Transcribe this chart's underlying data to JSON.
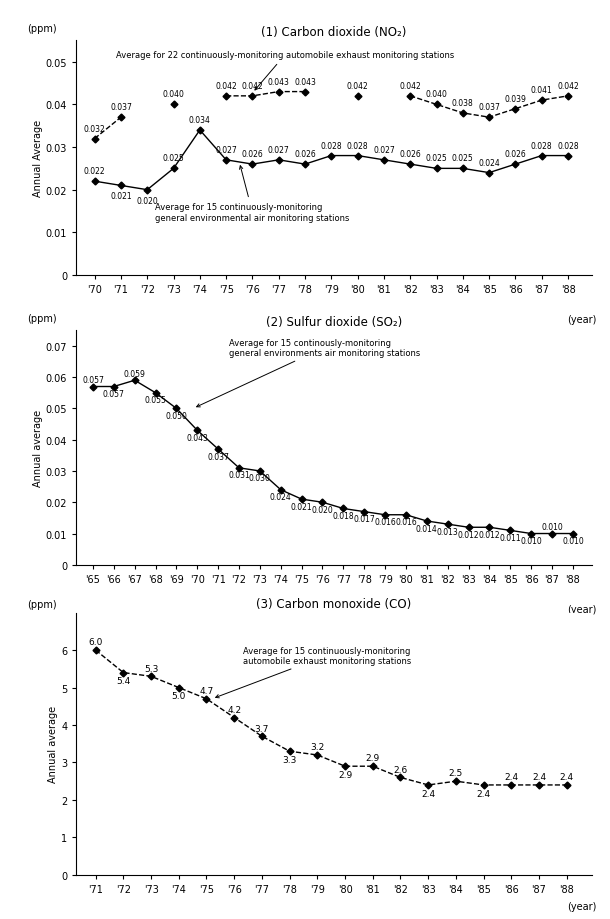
{
  "chart1": {
    "title": "(1) Carbon dioxide (NO₂)",
    "ylabel": "Annual Average",
    "ppm_label": "(ppm)",
    "year_label": "(year)",
    "ylim": [
      0,
      0.055
    ],
    "yticks": [
      0,
      0.01,
      0.02,
      0.03,
      0.04,
      0.05
    ],
    "auto_segments": [
      [
        [
          1970,
          0.032
        ],
        [
          1971,
          0.037
        ]
      ],
      [
        [
          1973,
          0.04
        ]
      ],
      [
        [
          1975,
          0.042
        ],
        [
          1976,
          0.042
        ],
        [
          1977,
          0.043
        ],
        [
          1978,
          0.043
        ]
      ],
      [
        [
          1980,
          0.042
        ]
      ],
      [
        [
          1982,
          0.042
        ],
        [
          1983,
          0.04
        ],
        [
          1984,
          0.038
        ],
        [
          1985,
          0.037
        ],
        [
          1986,
          0.039
        ],
        [
          1987,
          0.041
        ],
        [
          1988,
          0.042
        ]
      ]
    ],
    "auto_x_all": [
      1970,
      1971,
      1973,
      1975,
      1976,
      1977,
      1978,
      1980,
      1982,
      1983,
      1984,
      1985,
      1986,
      1987,
      1988
    ],
    "auto_y_all": [
      0.032,
      0.037,
      0.04,
      0.042,
      0.042,
      0.043,
      0.043,
      0.042,
      0.042,
      0.04,
      0.038,
      0.037,
      0.039,
      0.041,
      0.042
    ],
    "auto_labels": [
      "0.032",
      "0.037",
      "0.040",
      "0.042",
      "0.042",
      "0.043",
      "0.043",
      "0.042",
      "0.042",
      "0.040",
      "0.038",
      "0.037",
      "0.039",
      "0.041",
      "0.042"
    ],
    "auto_label_va": [
      "bottom",
      "bottom",
      "bottom",
      "bottom",
      "bottom",
      "bottom",
      "bottom",
      "bottom",
      "bottom",
      "bottom",
      "bottom",
      "bottom",
      "bottom",
      "bottom",
      "bottom"
    ],
    "gen_x": [
      1970,
      1971,
      1972,
      1973,
      1974,
      1975,
      1976,
      1977,
      1978,
      1979,
      1980,
      1981,
      1982,
      1983,
      1984,
      1985,
      1986,
      1987,
      1988
    ],
    "gen_y": [
      0.022,
      0.021,
      0.02,
      0.025,
      0.034,
      0.027,
      0.026,
      0.027,
      0.026,
      0.028,
      0.028,
      0.027,
      0.026,
      0.025,
      0.025,
      0.024,
      0.026,
      0.028,
      0.028
    ],
    "gen_labels": [
      "0.022",
      "0.021",
      "0.020",
      "0.025",
      "0.034",
      "0.027",
      "0.026",
      "0.027",
      "0.026",
      "0.028",
      "0.028",
      "0.027",
      "0.026",
      "0.025",
      "0.025",
      "0.024",
      "0.026",
      "0.028",
      "0.028"
    ],
    "xticks": [
      1970,
      1971,
      1972,
      1973,
      1974,
      1975,
      1976,
      1977,
      1978,
      1979,
      1980,
      1981,
      1982,
      1983,
      1984,
      1985,
      1986,
      1987,
      1988
    ],
    "xticklabels": [
      "'70",
      "'71",
      "'72",
      "'73",
      "'74",
      "'75",
      "'76",
      "'77",
      "'78",
      "'79",
      "'80",
      "'81",
      "'82",
      "'83",
      "'84",
      "'85",
      "'86",
      "'87",
      "'88"
    ],
    "auto_annot_text": "Average for 22 continuously-monitoring automobile exhaust monitoring stations",
    "gen_annot_text": "Average for 15 continuously-monitoring\ngeneral environmental air monitoring stations"
  },
  "chart2": {
    "title": "(2) Sulfur dioxide (SO₂)",
    "ylabel": "Annual average",
    "ppm_label": "(ppm)",
    "year_label": "(year)",
    "ylim": [
      0,
      0.075
    ],
    "yticks": [
      0,
      0.01,
      0.02,
      0.03,
      0.04,
      0.05,
      0.06,
      0.07
    ],
    "x": [
      1965,
      1966,
      1967,
      1968,
      1969,
      1970,
      1971,
      1972,
      1973,
      1974,
      1975,
      1976,
      1977,
      1978,
      1979,
      1980,
      1981,
      1982,
      1983,
      1984,
      1985,
      1986,
      1987,
      1988
    ],
    "y": [
      0.057,
      0.057,
      0.059,
      0.055,
      0.05,
      0.043,
      0.037,
      0.031,
      0.03,
      0.024,
      0.021,
      0.02,
      0.018,
      0.017,
      0.016,
      0.016,
      0.014,
      0.013,
      0.012,
      0.012,
      0.011,
      0.01,
      0.01,
      0.01
    ],
    "labels": [
      "0.057",
      "0.057",
      "0.059",
      "0.055",
      "0.050",
      "0.043",
      "0.037",
      "0.031",
      "0.030",
      "0.024",
      "0.021",
      "0.020",
      "0.018",
      "0.017",
      "0.016",
      "0.016",
      "0.014",
      "0.013",
      "0.012",
      "0.012",
      "0.011",
      "0.010",
      "0.010",
      "0.010"
    ],
    "label_va": [
      "bottom",
      "top",
      "bottom",
      "top",
      "top",
      "top",
      "top",
      "top",
      "top",
      "top",
      "top",
      "top",
      "top",
      "top",
      "top",
      "top",
      "top",
      "top",
      "top",
      "top",
      "top",
      "top",
      "bottom",
      "top"
    ],
    "xticks": [
      1965,
      1966,
      1967,
      1968,
      1969,
      1970,
      1971,
      1972,
      1973,
      1974,
      1975,
      1976,
      1977,
      1978,
      1979,
      1980,
      1981,
      1982,
      1983,
      1984,
      1985,
      1986,
      1987,
      1988
    ],
    "xticklabels": [
      "'65",
      "'66",
      "'67",
      "'68",
      "'69",
      "'70",
      "'71",
      "'72",
      "'73",
      "'74",
      "'75",
      "'76",
      "'77",
      "'78",
      "'79",
      "'80",
      "'81",
      "'82",
      "'83",
      "'84",
      "'85",
      "'86",
      "'87",
      "'88"
    ],
    "annot_text": "Average for 15 continously-monitoring\ngeneral environments air monitoring stations"
  },
  "chart3": {
    "title": "(3) Carbon monoxide (CO)",
    "ylabel": "Annual average",
    "ppm_label": "(ppm)",
    "year_label": "(year)",
    "ylim": [
      0,
      7
    ],
    "yticks": [
      0,
      1,
      2,
      3,
      4,
      5,
      6
    ],
    "x": [
      1971,
      1972,
      1973,
      1974,
      1975,
      1976,
      1977,
      1978,
      1979,
      1980,
      1981,
      1982,
      1983,
      1984,
      1985,
      1986,
      1987,
      1988
    ],
    "y": [
      6.0,
      5.4,
      5.3,
      5.0,
      4.7,
      4.2,
      3.7,
      3.3,
      3.2,
      2.9,
      2.9,
      2.6,
      2.4,
      2.5,
      2.4,
      2.4,
      2.4,
      2.4
    ],
    "labels": [
      "6.0",
      "5.4",
      "5.3",
      "5.0",
      "4.7",
      "4.2",
      "3.7",
      "3.3",
      "3.2",
      "2.9",
      "2.9",
      "2.6",
      "2.4",
      "2.5",
      "2.4",
      "2.4",
      "2.4",
      "2.4"
    ],
    "label_va": [
      "bottom",
      "top",
      "bottom",
      "top",
      "bottom",
      "bottom",
      "bottom",
      "top",
      "bottom",
      "top",
      "bottom",
      "bottom",
      "top",
      "bottom",
      "top",
      "bottom",
      "bottom",
      "bottom"
    ],
    "xticks": [
      1971,
      1972,
      1973,
      1974,
      1975,
      1976,
      1977,
      1978,
      1979,
      1980,
      1981,
      1982,
      1983,
      1984,
      1985,
      1986,
      1987,
      1988
    ],
    "xticklabels": [
      "'71",
      "'72",
      "'73",
      "'74",
      "'75",
      "'76",
      "'77",
      "'78",
      "'79",
      "'80",
      "'81",
      "'82",
      "'83",
      "'84",
      "'85",
      "'86",
      "'87",
      "'88"
    ],
    "annot_text": "Average for 15 continuously-monitoring\nautomobile exhaust monitoring stations"
  }
}
